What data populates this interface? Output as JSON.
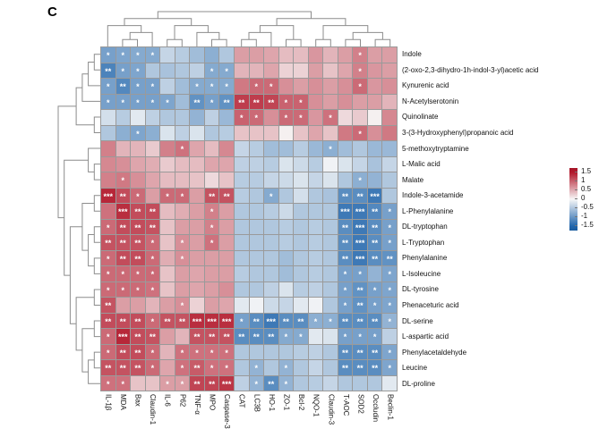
{
  "panel_label": "C",
  "chart_data": {
    "type": "heatmap",
    "title": "",
    "columns": [
      "IL-1β",
      "MDA",
      "Bax",
      "Claudin-1",
      "IL-6",
      "P62",
      "TNF-α",
      "MPO",
      "Caspase-3",
      "CAT",
      "LC3B",
      "HO-1",
      "ZO-1",
      "Bcl-2",
      "NQO-1",
      "Claudin-3",
      "T-AOC",
      "SOD2",
      "Occludin",
      "Beclin-1"
    ],
    "rows": [
      "Indole",
      "(2-oxo-2,3-dihydro-1h-indol-3-yl)acetic acid",
      "Kynurenic acid",
      "N-Acetylserotonin",
      "Quinolinate",
      "3-(3-Hydroxyphenyl)propanoic acid",
      "5-methoxytryptamine",
      "L-Malic acid",
      "Malate",
      "Indole-3-acetamide",
      "L-Phenylalanine",
      "DL-tryptophan",
      "L-Tryptophan",
      "Phenylalanine",
      "L-Isoleucine",
      "DL-tyrosine",
      "Phenaceturic acid",
      "DL-serine",
      "L-aspartic acid",
      "Phenylacetaldehyde",
      "Leucine",
      "DL-proline"
    ],
    "values": [
      [
        -0.9,
        -0.85,
        -0.8,
        -0.8,
        -0.35,
        -0.45,
        -0.6,
        -0.75,
        -0.5,
        0.6,
        0.6,
        0.55,
        0.4,
        0.4,
        0.65,
        0.45,
        0.6,
        0.8,
        0.6,
        0.6
      ],
      [
        -1.2,
        -0.9,
        -0.85,
        -0.5,
        -0.55,
        -0.5,
        -0.4,
        -0.8,
        -0.8,
        0.45,
        0.45,
        0.55,
        0.25,
        0.25,
        0.6,
        0.35,
        0.55,
        0.8,
        0.65,
        0.6
      ],
      [
        -0.9,
        -1.15,
        -0.9,
        -0.9,
        -0.4,
        -0.6,
        -0.8,
        -0.8,
        -0.8,
        0.85,
        0.95,
        0.95,
        0.7,
        0.6,
        0.7,
        0.6,
        0.7,
        0.95,
        0.65,
        0.7
      ],
      [
        -0.9,
        -0.9,
        -0.9,
        -0.9,
        -0.85,
        -0.6,
        -1.05,
        -0.9,
        -1.05,
        1.25,
        1.25,
        1.2,
        1.0,
        1.0,
        0.7,
        0.6,
        0.7,
        0.6,
        0.6,
        0.45
      ],
      [
        -0.25,
        -0.45,
        -0.15,
        -0.4,
        -0.5,
        -0.5,
        -0.7,
        -0.4,
        -0.65,
        1.0,
        0.95,
        0.7,
        0.95,
        0.95,
        0.65,
        0.9,
        0.2,
        0.3,
        0.05,
        0.75
      ],
      [
        -0.5,
        -0.75,
        -0.85,
        -0.75,
        -0.2,
        -0.4,
        -0.2,
        -0.5,
        -0.45,
        0.35,
        0.35,
        0.35,
        0.05,
        0.35,
        0.55,
        0.35,
        0.85,
        0.95,
        0.7,
        0.85
      ],
      [
        0.8,
        0.45,
        0.45,
        0.3,
        0.8,
        0.9,
        0.55,
        0.4,
        0.75,
        -0.35,
        -0.45,
        -0.6,
        -0.6,
        -0.45,
        -0.65,
        -0.75,
        -0.6,
        -0.5,
        -0.65,
        -0.65
      ],
      [
        0.75,
        0.7,
        0.55,
        0.5,
        0.3,
        0.4,
        0.4,
        0.55,
        0.55,
        -0.4,
        -0.4,
        -0.45,
        -0.2,
        -0.3,
        -0.45,
        -0.05,
        -0.2,
        -0.35,
        -0.55,
        -0.35
      ],
      [
        0.8,
        0.85,
        0.7,
        0.55,
        0.4,
        0.4,
        0.35,
        0.2,
        0.35,
        -0.45,
        -0.45,
        -0.35,
        -0.3,
        -0.2,
        -0.35,
        -0.2,
        -0.5,
        -0.75,
        -0.7,
        -0.5
      ],
      [
        1.4,
        1.15,
        0.95,
        0.6,
        0.95,
        0.95,
        0.6,
        1.1,
        1.1,
        -0.45,
        -0.5,
        -0.8,
        -0.5,
        -0.25,
        -0.5,
        -0.55,
        -1.1,
        -1.1,
        -1.3,
        -0.5
      ],
      [
        0.9,
        1.35,
        1.15,
        1.15,
        0.4,
        0.5,
        0.6,
        0.8,
        0.6,
        -0.5,
        -0.5,
        -0.45,
        -0.3,
        -0.5,
        -0.5,
        -0.5,
        -1.3,
        -1.3,
        -1.15,
        -0.9
      ],
      [
        0.95,
        1.15,
        1.15,
        1.1,
        0.35,
        0.6,
        0.6,
        0.8,
        0.6,
        -0.5,
        -0.5,
        -0.5,
        -0.45,
        -0.5,
        -0.45,
        -0.5,
        -1.1,
        -1.3,
        -1.1,
        -0.9
      ],
      [
        1.1,
        1.1,
        1.1,
        0.95,
        0.35,
        0.7,
        0.6,
        0.9,
        0.6,
        -0.5,
        -0.5,
        -0.5,
        -0.45,
        -0.5,
        -0.45,
        -0.5,
        -1.1,
        -1.3,
        -1.1,
        -0.9
      ],
      [
        0.95,
        1.15,
        1.15,
        0.95,
        0.5,
        0.7,
        0.6,
        0.6,
        0.6,
        -0.5,
        -0.5,
        -0.5,
        -0.6,
        -0.5,
        -0.45,
        -0.5,
        -1.1,
        -1.3,
        -1.1,
        -1.05
      ],
      [
        0.95,
        0.95,
        0.95,
        0.95,
        0.35,
        0.6,
        0.55,
        0.6,
        0.6,
        -0.45,
        -0.5,
        -0.5,
        -0.6,
        -0.5,
        -0.45,
        -0.5,
        -0.9,
        -0.9,
        -0.7,
        -0.85
      ],
      [
        0.95,
        0.95,
        0.95,
        0.9,
        0.35,
        0.6,
        0.55,
        0.6,
        0.7,
        -0.5,
        -0.5,
        -0.4,
        -0.2,
        -0.45,
        -0.4,
        -0.5,
        -0.9,
        -1.05,
        -0.9,
        -0.85
      ],
      [
        1.1,
        0.6,
        0.6,
        0.45,
        0.6,
        0.7,
        0.25,
        0.6,
        0.55,
        -0.15,
        -0.05,
        -0.3,
        -0.35,
        -0.15,
        -0.05,
        -0.5,
        -0.9,
        -1.05,
        -0.9,
        -0.85
      ],
      [
        1.15,
        1.15,
        1.15,
        0.95,
        1.1,
        1.1,
        1.35,
        1.35,
        1.35,
        -0.9,
        -1.1,
        -1.3,
        -1.1,
        -1.1,
        -0.75,
        -0.75,
        -1.1,
        -1.1,
        -1.1,
        -0.7
      ],
      [
        0.95,
        1.4,
        1.15,
        1.1,
        0.6,
        0.45,
        1.1,
        1.1,
        1.1,
        -1.1,
        -1.1,
        -1.1,
        -0.8,
        -0.8,
        -0.15,
        -0.2,
        -0.9,
        -0.9,
        -0.9,
        -0.4
      ],
      [
        0.95,
        1.15,
        1.15,
        0.95,
        0.45,
        0.9,
        0.9,
        0.9,
        0.9,
        -0.5,
        -0.5,
        -0.5,
        -0.5,
        -0.45,
        -0.4,
        -0.5,
        -1.1,
        -1.1,
        -1.1,
        -0.85
      ],
      [
        1.1,
        1.1,
        1.1,
        0.95,
        0.55,
        0.9,
        1.05,
        0.9,
        0.9,
        -0.5,
        -0.7,
        -0.5,
        -0.7,
        -0.5,
        -0.35,
        -0.5,
        -1.1,
        -1.1,
        -1.1,
        -0.85
      ],
      [
        0.9,
        0.9,
        0.35,
        0.35,
        0.6,
        0.6,
        1.2,
        1.2,
        1.3,
        -0.4,
        -0.7,
        -1.1,
        -0.7,
        -0.5,
        -0.45,
        -0.35,
        -0.5,
        -0.5,
        -0.5,
        -0.15
      ]
    ],
    "significance": [
      [
        1,
        1,
        1,
        1,
        0,
        0,
        0,
        0,
        0,
        0,
        0,
        0,
        0,
        0,
        0,
        0,
        0,
        1,
        0,
        0
      ],
      [
        2,
        1,
        1,
        0,
        0,
        0,
        0,
        1,
        1,
        0,
        0,
        0,
        0,
        0,
        0,
        0,
        0,
        1,
        0,
        0
      ],
      [
        1,
        2,
        1,
        1,
        0,
        0,
        1,
        1,
        1,
        0,
        1,
        1,
        0,
        0,
        0,
        0,
        0,
        1,
        0,
        0
      ],
      [
        1,
        1,
        1,
        1,
        1,
        0,
        2,
        1,
        2,
        2,
        2,
        2,
        1,
        1,
        0,
        0,
        0,
        0,
        0,
        0
      ],
      [
        0,
        0,
        0,
        0,
        0,
        0,
        0,
        0,
        0,
        1,
        1,
        0,
        1,
        1,
        0,
        1,
        0,
        0,
        0,
        0
      ],
      [
        0,
        0,
        1,
        0,
        0,
        0,
        0,
        0,
        0,
        0,
        0,
        0,
        0,
        0,
        0,
        0,
        0,
        1,
        0,
        0
      ],
      [
        0,
        0,
        0,
        0,
        0,
        1,
        0,
        0,
        0,
        0,
        0,
        0,
        0,
        0,
        0,
        1,
        0,
        0,
        0,
        0
      ],
      [
        0,
        0,
        0,
        0,
        0,
        0,
        0,
        0,
        0,
        0,
        0,
        0,
        0,
        0,
        0,
        0,
        0,
        0,
        0,
        0
      ],
      [
        0,
        1,
        0,
        0,
        0,
        0,
        0,
        0,
        0,
        0,
        0,
        0,
        0,
        0,
        0,
        0,
        0,
        1,
        0,
        0
      ],
      [
        3,
        2,
        1,
        0,
        1,
        1,
        0,
        2,
        2,
        0,
        0,
        1,
        0,
        0,
        0,
        0,
        2,
        2,
        3,
        0
      ],
      [
        0,
        3,
        2,
        2,
        0,
        0,
        0,
        1,
        0,
        0,
        0,
        0,
        0,
        0,
        0,
        0,
        3,
        3,
        2,
        1
      ],
      [
        1,
        2,
        2,
        2,
        0,
        0,
        0,
        1,
        0,
        0,
        0,
        0,
        0,
        0,
        0,
        0,
        2,
        3,
        2,
        1
      ],
      [
        2,
        2,
        2,
        1,
        0,
        1,
        0,
        1,
        0,
        0,
        0,
        0,
        0,
        0,
        0,
        0,
        2,
        3,
        2,
        1
      ],
      [
        1,
        2,
        2,
        1,
        0,
        1,
        0,
        0,
        0,
        0,
        0,
        0,
        0,
        0,
        0,
        0,
        2,
        3,
        2,
        2
      ],
      [
        1,
        1,
        1,
        1,
        0,
        0,
        0,
        0,
        0,
        0,
        0,
        0,
        0,
        0,
        0,
        0,
        1,
        1,
        0,
        1
      ],
      [
        1,
        1,
        1,
        1,
        0,
        0,
        0,
        0,
        0,
        0,
        0,
        0,
        0,
        0,
        0,
        0,
        1,
        2,
        1,
        1
      ],
      [
        2,
        0,
        0,
        0,
        0,
        1,
        0,
        0,
        0,
        0,
        0,
        0,
        0,
        0,
        0,
        0,
        1,
        2,
        1,
        1
      ],
      [
        2,
        2,
        2,
        1,
        2,
        2,
        3,
        3,
        3,
        1,
        2,
        3,
        2,
        2,
        1,
        1,
        2,
        2,
        2,
        1
      ],
      [
        1,
        3,
        2,
        2,
        0,
        0,
        2,
        2,
        2,
        2,
        2,
        2,
        1,
        1,
        0,
        0,
        1,
        1,
        1,
        0
      ],
      [
        1,
        2,
        2,
        1,
        0,
        1,
        1,
        1,
        1,
        0,
        0,
        0,
        0,
        0,
        0,
        0,
        2,
        2,
        2,
        1
      ],
      [
        2,
        2,
        2,
        1,
        0,
        1,
        2,
        1,
        1,
        0,
        1,
        0,
        1,
        0,
        0,
        0,
        2,
        2,
        2,
        1
      ],
      [
        1,
        1,
        0,
        0,
        1,
        1,
        2,
        2,
        3,
        0,
        1,
        2,
        1,
        0,
        0,
        0,
        0,
        0,
        0,
        0
      ]
    ],
    "color_scale": {
      "min": -1.5,
      "max": 1.5,
      "negative": "#2166ac",
      "mid": "#f7f7f7",
      "positive": "#b2182b"
    },
    "legend_ticks": [
      "1.5",
      "1",
      "0.5",
      "0",
      "-0.5",
      "-1",
      "-1.5"
    ],
    "legend_position": "right",
    "col_dendrogram": [
      [
        [
          0,
          [
            [
              1,
              2
            ],
            3
          ]
        ],
        [
          [
            4,
            5
          ],
          [
            6,
            [
              7,
              8
            ]
          ]
        ]
      ],
      [
        [
          [
            [
              9,
              10
            ],
            11
          ],
          [
            12,
            13
          ]
        ],
        [
          [
            14,
            15
          ],
          [
            [
              16,
              17
            ],
            [
              18,
              19
            ]
          ]
        ]
      ]
    ],
    "row_dendrogram": [
      [
        [
          [
            [
              0,
              1
            ],
            2
          ],
          3
        ],
        [
          4,
          5
        ]
      ],
      [
        [
          6,
          [
            7,
            8
          ]
        ],
        [
          [
            [
              9,
              10
            ],
            [
              [
                11,
                12
              ],
              [
                13,
                14
              ]
            ]
          ],
          [
            [
              15,
              16
            ],
            [
              [
                17,
                18
              ],
              [
                [
                  19,
                  20
                ],
                21
              ]
            ]
          ]
        ]
      ]
    ]
  }
}
